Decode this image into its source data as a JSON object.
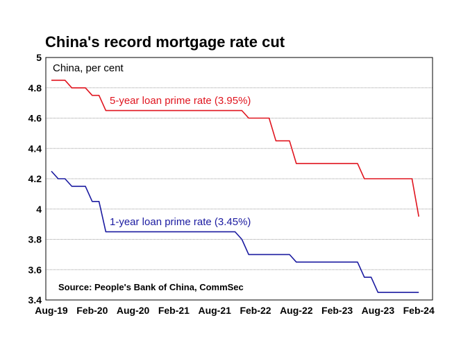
{
  "chart_data": {
    "type": "line",
    "title": "China's record mortgage rate cut",
    "unit_label": "China, per cent",
    "source": "Source: People's Bank of China, CommSec",
    "xlabel": "",
    "ylabel": "",
    "ylim": [
      3.4,
      5
    ],
    "yticks": [
      "3.4",
      "3.6",
      "3.8",
      "4",
      "4.2",
      "4.4",
      "4.6",
      "4.8",
      "5"
    ],
    "xticks": [
      "Aug-19",
      "Feb-20",
      "Aug-20",
      "Feb-21",
      "Aug-21",
      "Feb-22",
      "Aug-22",
      "Feb-23",
      "Aug-23",
      "Feb-24"
    ],
    "grid": true,
    "series": [
      {
        "name": "5-year loan prime rate (3.95%)",
        "color": "#e0141e",
        "x": [
          "Aug-19",
          "Sep-19",
          "Oct-19",
          "Nov-19",
          "Dec-19",
          "Jan-20",
          "Feb-20",
          "Mar-20",
          "Apr-20",
          "May-20",
          "Jun-20",
          "Jul-20",
          "Aug-20",
          "Sep-20",
          "Oct-20",
          "Nov-20",
          "Dec-20",
          "Jan-21",
          "Feb-21",
          "Mar-21",
          "Apr-21",
          "May-21",
          "Jun-21",
          "Jul-21",
          "Aug-21",
          "Sep-21",
          "Oct-21",
          "Nov-21",
          "Dec-21",
          "Jan-22",
          "Feb-22",
          "Mar-22",
          "Apr-22",
          "May-22",
          "Jun-22",
          "Jul-22",
          "Aug-22",
          "Sep-22",
          "Oct-22",
          "Nov-22",
          "Dec-22",
          "Jan-23",
          "Feb-23",
          "Mar-23",
          "Apr-23",
          "May-23",
          "Jun-23",
          "Jul-23",
          "Aug-23",
          "Sep-23",
          "Oct-23",
          "Nov-23",
          "Dec-23",
          "Jan-24",
          "Feb-24"
        ],
        "values": [
          4.85,
          4.85,
          4.85,
          4.8,
          4.8,
          4.8,
          4.75,
          4.75,
          4.65,
          4.65,
          4.65,
          4.65,
          4.65,
          4.65,
          4.65,
          4.65,
          4.65,
          4.65,
          4.65,
          4.65,
          4.65,
          4.65,
          4.65,
          4.65,
          4.65,
          4.65,
          4.65,
          4.65,
          4.65,
          4.6,
          4.6,
          4.6,
          4.6,
          4.45,
          4.45,
          4.45,
          4.3,
          4.3,
          4.3,
          4.3,
          4.3,
          4.3,
          4.3,
          4.3,
          4.3,
          4.3,
          4.2,
          4.2,
          4.2,
          4.2,
          4.2,
          4.2,
          4.2,
          4.2,
          3.95
        ]
      },
      {
        "name": "1-year loan prime rate (3.45%)",
        "color": "#1a1aa0",
        "x": [
          "Aug-19",
          "Sep-19",
          "Oct-19",
          "Nov-19",
          "Dec-19",
          "Jan-20",
          "Feb-20",
          "Mar-20",
          "Apr-20",
          "May-20",
          "Jun-20",
          "Jul-20",
          "Aug-20",
          "Sep-20",
          "Oct-20",
          "Nov-20",
          "Dec-20",
          "Jan-21",
          "Feb-21",
          "Mar-21",
          "Apr-21",
          "May-21",
          "Jun-21",
          "Jul-21",
          "Aug-21",
          "Sep-21",
          "Oct-21",
          "Nov-21",
          "Dec-21",
          "Jan-22",
          "Feb-22",
          "Mar-22",
          "Apr-22",
          "May-22",
          "Jun-22",
          "Jul-22",
          "Aug-22",
          "Sep-22",
          "Oct-22",
          "Nov-22",
          "Dec-22",
          "Jan-23",
          "Feb-23",
          "Mar-23",
          "Apr-23",
          "May-23",
          "Jun-23",
          "Jul-23",
          "Aug-23",
          "Sep-23",
          "Oct-23",
          "Nov-23",
          "Dec-23",
          "Jan-24",
          "Feb-24"
        ],
        "values": [
          4.25,
          4.2,
          4.2,
          4.15,
          4.15,
          4.15,
          4.05,
          4.05,
          3.85,
          3.85,
          3.85,
          3.85,
          3.85,
          3.85,
          3.85,
          3.85,
          3.85,
          3.85,
          3.85,
          3.85,
          3.85,
          3.85,
          3.85,
          3.85,
          3.85,
          3.85,
          3.85,
          3.85,
          3.8,
          3.7,
          3.7,
          3.7,
          3.7,
          3.7,
          3.7,
          3.7,
          3.65,
          3.65,
          3.65,
          3.65,
          3.65,
          3.65,
          3.65,
          3.65,
          3.65,
          3.65,
          3.55,
          3.55,
          3.45,
          3.45,
          3.45,
          3.45,
          3.45,
          3.45,
          3.45
        ]
      }
    ]
  }
}
